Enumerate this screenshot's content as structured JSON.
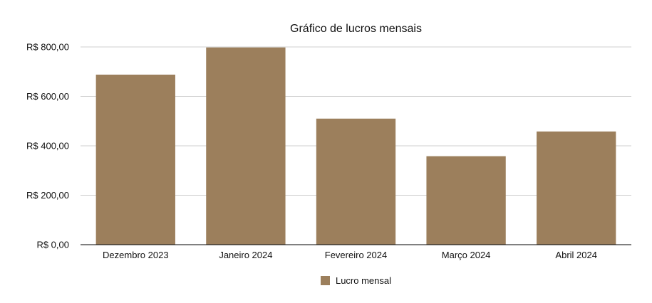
{
  "chart_data": {
    "type": "bar",
    "title": "Gráfico de lucros mensais",
    "categories": [
      "Dezembro 2023",
      "Janeiro 2024",
      "Fevereiro 2024",
      "Março 2024",
      "Abril 2024"
    ],
    "series": [
      {
        "name": "Lucro mensal",
        "values": [
          688,
          798,
          510,
          358,
          458
        ],
        "color": "#9c7f5c"
      }
    ],
    "ylim": [
      0,
      800
    ],
    "yticks": [
      0,
      200,
      400,
      600,
      800
    ],
    "ytick_labels": [
      "R$ 0,00",
      "R$ 200,00",
      "R$ 400,00",
      "R$ 600,00",
      "R$ 800,00"
    ],
    "grid": true,
    "legend_position": "bottom-center"
  }
}
